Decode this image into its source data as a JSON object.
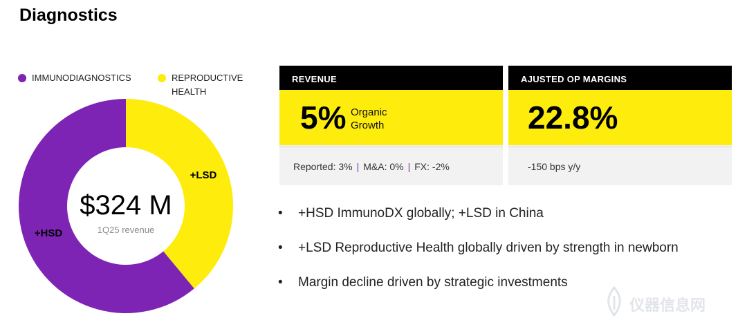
{
  "page": {
    "title": "Diagnostics"
  },
  "colors": {
    "purple": "#7e24b4",
    "yellow": "#fdec0c",
    "black": "#000000",
    "panel": "#f2f2f2"
  },
  "chart_data": {
    "type": "pie",
    "categories": [
      "IMMUNODIAGNOSTICS",
      "REPRODUCTIVE HEALTH"
    ],
    "values": [
      0.61,
      0.39
    ],
    "slice_labels": [
      "+HSD",
      "+LSD"
    ],
    "center_value": "$324 M",
    "center_label": "1Q25 revenue",
    "legend": "top"
  },
  "legend": {
    "items": [
      "IMMUNODIAGNOSTICS",
      "REPRODUCTIVE HEALTH"
    ]
  },
  "revenue": {
    "header": "REVENUE",
    "value": "5%",
    "side_1": "Organic",
    "side_2": "Growth",
    "reported": "Reported: 3%",
    "ma": "M&A: 0%",
    "fx": "FX: -2%"
  },
  "op_margin": {
    "header": "AJUSTED OP MARGINS",
    "value": "22.8%",
    "note": "-150 bps y/y"
  },
  "bullets": [
    "+HSD ImmunoDX globally; +LSD in China",
    "+LSD Reproductive Health globally driven by strength in newborn",
    "Margin decline driven by strategic investments"
  ],
  "watermark": {
    "text": "仪器信息网"
  }
}
